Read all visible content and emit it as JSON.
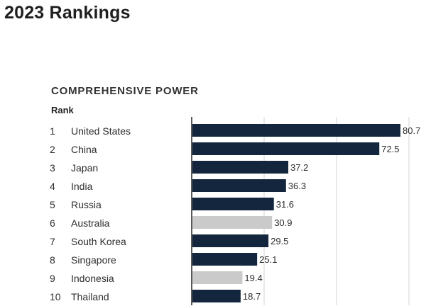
{
  "page_title": "2023 Rankings",
  "section_title": "COMPREHENSIVE POWER",
  "rank_header": "Rank",
  "colors": {
    "primary_bar": "#13263d",
    "highlight_bar": "#cacaca",
    "gridline": "#d3d3d3",
    "axis": "#222222"
  },
  "chart_data": {
    "type": "bar",
    "orientation": "horizontal",
    "title": "COMPREHENSIVE POWER",
    "xlim": [
      0,
      80.7
    ],
    "grid": true,
    "rows": [
      {
        "rank": "1",
        "country": "United States",
        "value": 80.7,
        "label": "80.7",
        "highlight": false
      },
      {
        "rank": "2",
        "country": "China",
        "value": 72.5,
        "label": "72.5",
        "highlight": false
      },
      {
        "rank": "3",
        "country": "Japan",
        "value": 37.2,
        "label": "37.2",
        "highlight": false
      },
      {
        "rank": "4",
        "country": "India",
        "value": 36.3,
        "label": "36.3",
        "highlight": false
      },
      {
        "rank": "5",
        "country": "Russia",
        "value": 31.6,
        "label": "31.6",
        "highlight": false
      },
      {
        "rank": "6",
        "country": "Australia",
        "value": 30.9,
        "label": "30.9",
        "highlight": true
      },
      {
        "rank": "7",
        "country": "South Korea",
        "value": 29.5,
        "label": "29.5",
        "highlight": false
      },
      {
        "rank": "8",
        "country": "Singapore",
        "value": 25.1,
        "label": "25.1",
        "highlight": false
      },
      {
        "rank": "9",
        "country": "Indonesia",
        "value": 19.4,
        "label": "19.4",
        "highlight": true
      },
      {
        "rank": "10",
        "country": "Thailand",
        "value": 18.7,
        "label": "18.7",
        "highlight": false
      }
    ]
  }
}
